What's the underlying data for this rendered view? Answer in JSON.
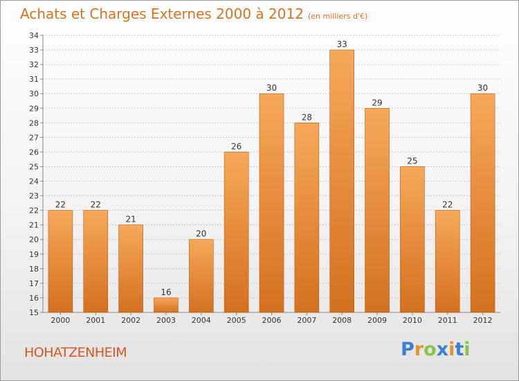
{
  "header": {
    "title": "Achats et Charges Externes 2000 à 2012",
    "unit": "(en milliers d'€)"
  },
  "footer": {
    "place": "HOHATZENHEIM",
    "logo_letters": [
      "P",
      "r",
      "o",
      "x",
      "i",
      "t",
      "i"
    ],
    "logo_colors": [
      "#3a7fd4",
      "#e0962a",
      "#8bc34a",
      "#3a7fd4",
      "#e0962a",
      "#3a7fd4",
      "#8bc34a"
    ]
  },
  "chart_data": {
    "type": "bar",
    "title": "Achats et Charges Externes 2000 à 2012",
    "subtitle": "(en milliers d'€)",
    "categories": [
      "2000",
      "2001",
      "2002",
      "2003",
      "2004",
      "2005",
      "2006",
      "2007",
      "2008",
      "2009",
      "2010",
      "2011",
      "2012"
    ],
    "values": [
      22,
      22,
      21,
      16,
      20,
      26,
      30,
      28,
      33,
      29,
      25,
      22,
      30
    ],
    "data_labels": [
      "22",
      "22",
      "21",
      "16",
      "20",
      "26",
      "30",
      "28",
      "33",
      "29",
      "25",
      "22",
      "30"
    ],
    "ylim": [
      15,
      34
    ],
    "yticks": [
      "15",
      "16",
      "17",
      "18",
      "19",
      "20",
      "21",
      "22",
      "23",
      "24",
      "25",
      "26",
      "27",
      "28",
      "29",
      "30",
      "31",
      "32",
      "33",
      "34"
    ],
    "grid": true,
    "colors": {
      "bar_top": "#f7a85a",
      "bar_bottom": "#d3711f",
      "bar_edge": "#b85d12",
      "grid": "#c8c8c8"
    }
  }
}
